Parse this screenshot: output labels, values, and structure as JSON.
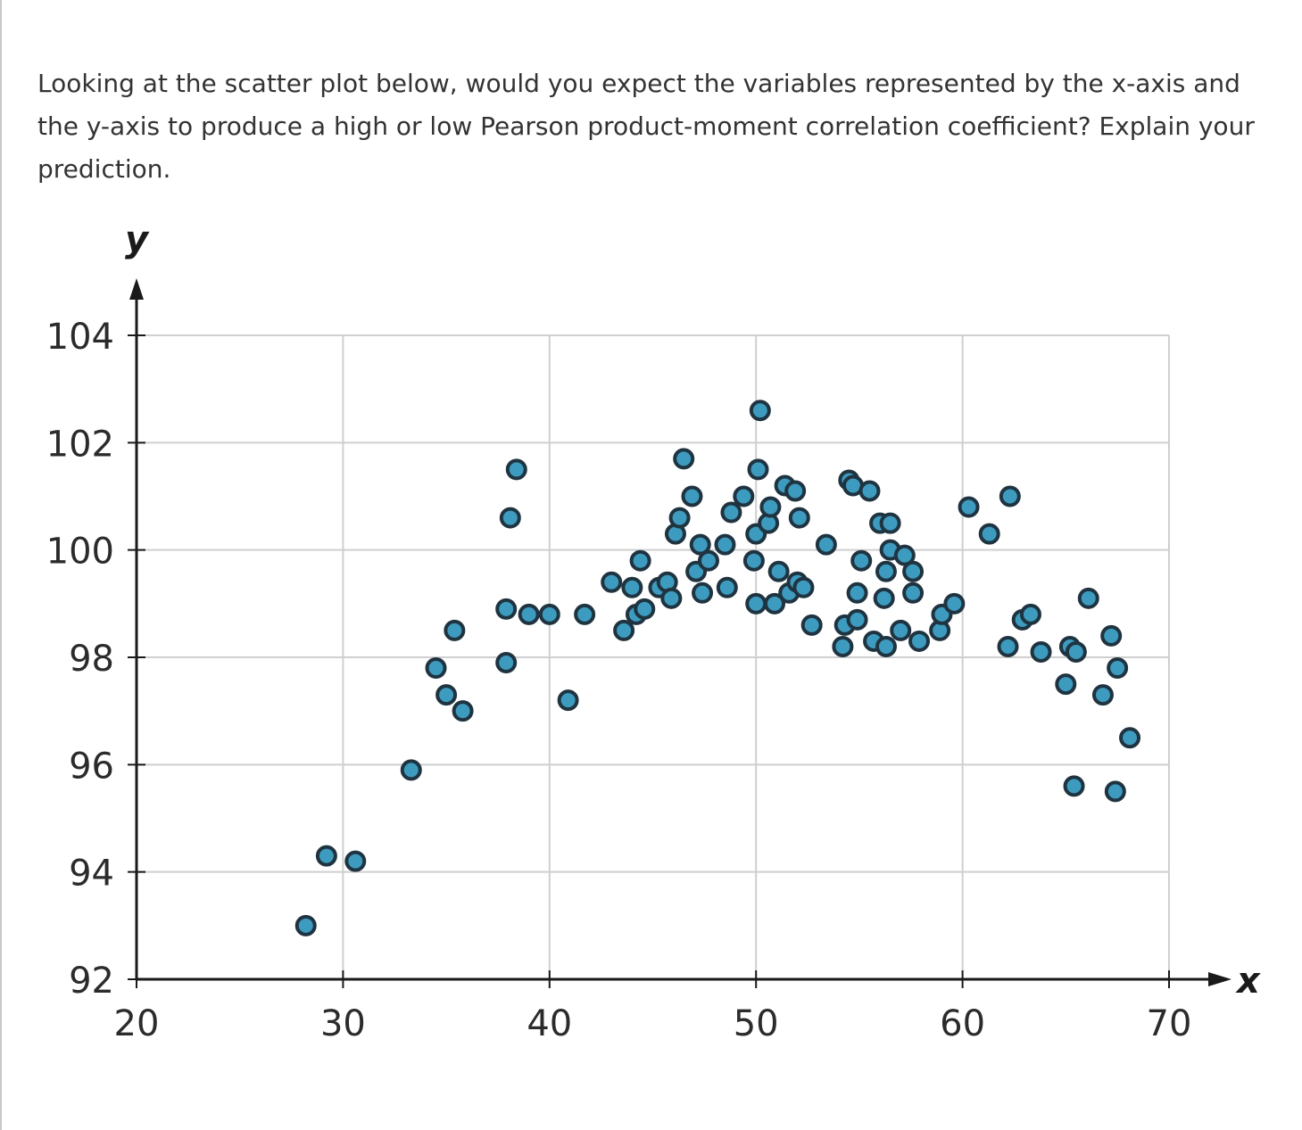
{
  "question": {
    "text": "Looking at the scatter plot below, would you expect the variables represented by the x-axis and the y-axis to produce a high or low Pearson product-moment correlation coefficient? Explain your prediction."
  },
  "colors": {
    "point_fill": "#3d9bbf",
    "point_stroke": "#1f3440",
    "grid": "#cfcfcf",
    "axis": "#1a1a1a",
    "text": "#333333"
  },
  "chart_data": {
    "type": "scatter",
    "title": "",
    "xlabel": "x",
    "ylabel": "y",
    "xlim": [
      20,
      70
    ],
    "ylim": [
      92,
      104
    ],
    "x_ticks": [
      20,
      30,
      40,
      50,
      60,
      70
    ],
    "y_ticks": [
      92,
      94,
      96,
      98,
      100,
      102,
      104
    ],
    "grid": true,
    "points": [
      [
        28.2,
        93.0
      ],
      [
        29.2,
        94.3
      ],
      [
        30.6,
        94.2
      ],
      [
        33.3,
        95.9
      ],
      [
        34.5,
        97.8
      ],
      [
        35.0,
        97.3
      ],
      [
        35.4,
        98.5
      ],
      [
        35.8,
        97.0
      ],
      [
        37.9,
        97.9
      ],
      [
        37.9,
        98.9
      ],
      [
        38.1,
        100.6
      ],
      [
        38.4,
        101.5
      ],
      [
        39.0,
        98.8
      ],
      [
        40.0,
        98.8
      ],
      [
        40.9,
        97.2
      ],
      [
        41.7,
        98.8
      ],
      [
        43.0,
        99.4
      ],
      [
        43.6,
        98.5
      ],
      [
        44.0,
        99.3
      ],
      [
        44.2,
        98.8
      ],
      [
        44.4,
        99.8
      ],
      [
        44.6,
        98.9
      ],
      [
        45.3,
        99.3
      ],
      [
        45.7,
        99.4
      ],
      [
        45.9,
        99.1
      ],
      [
        46.1,
        100.3
      ],
      [
        46.3,
        100.6
      ],
      [
        46.5,
        101.7
      ],
      [
        46.9,
        101.0
      ],
      [
        47.1,
        99.6
      ],
      [
        47.3,
        100.1
      ],
      [
        47.4,
        99.2
      ],
      [
        47.7,
        99.8
      ],
      [
        48.5,
        100.1
      ],
      [
        48.6,
        99.3
      ],
      [
        48.8,
        100.7
      ],
      [
        49.4,
        101.0
      ],
      [
        49.9,
        99.8
      ],
      [
        50.0,
        100.3
      ],
      [
        50.0,
        99.0
      ],
      [
        50.1,
        101.5
      ],
      [
        50.2,
        102.6
      ],
      [
        50.6,
        100.5
      ],
      [
        50.7,
        100.8
      ],
      [
        50.9,
        99.0
      ],
      [
        51.1,
        99.6
      ],
      [
        51.4,
        101.2
      ],
      [
        51.6,
        99.2
      ],
      [
        51.9,
        101.1
      ],
      [
        52.0,
        99.4
      ],
      [
        52.1,
        100.6
      ],
      [
        52.3,
        99.3
      ],
      [
        52.7,
        98.6
      ],
      [
        53.4,
        100.1
      ],
      [
        54.2,
        98.2
      ],
      [
        54.3,
        98.6
      ],
      [
        54.5,
        101.3
      ],
      [
        54.7,
        101.2
      ],
      [
        54.9,
        99.2
      ],
      [
        54.9,
        98.7
      ],
      [
        55.1,
        99.8
      ],
      [
        55.5,
        101.1
      ],
      [
        55.7,
        98.3
      ],
      [
        56.0,
        100.5
      ],
      [
        56.2,
        99.1
      ],
      [
        56.3,
        99.6
      ],
      [
        56.3,
        98.2
      ],
      [
        56.5,
        100.5
      ],
      [
        56.5,
        100.0
      ],
      [
        57.0,
        98.5
      ],
      [
        57.2,
        99.9
      ],
      [
        57.6,
        99.2
      ],
      [
        57.6,
        99.6
      ],
      [
        57.9,
        98.3
      ],
      [
        58.9,
        98.5
      ],
      [
        59.0,
        98.8
      ],
      [
        59.6,
        99.0
      ],
      [
        60.3,
        100.8
      ],
      [
        61.3,
        100.3
      ],
      [
        62.2,
        98.2
      ],
      [
        62.3,
        101.0
      ],
      [
        62.9,
        98.7
      ],
      [
        63.3,
        98.8
      ],
      [
        63.8,
        98.1
      ],
      [
        65.0,
        97.5
      ],
      [
        65.2,
        98.2
      ],
      [
        65.5,
        98.1
      ],
      [
        65.4,
        95.6
      ],
      [
        66.1,
        99.1
      ],
      [
        66.8,
        97.3
      ],
      [
        67.2,
        98.4
      ],
      [
        67.5,
        97.8
      ],
      [
        67.4,
        95.5
      ],
      [
        68.1,
        96.5
      ]
    ]
  }
}
